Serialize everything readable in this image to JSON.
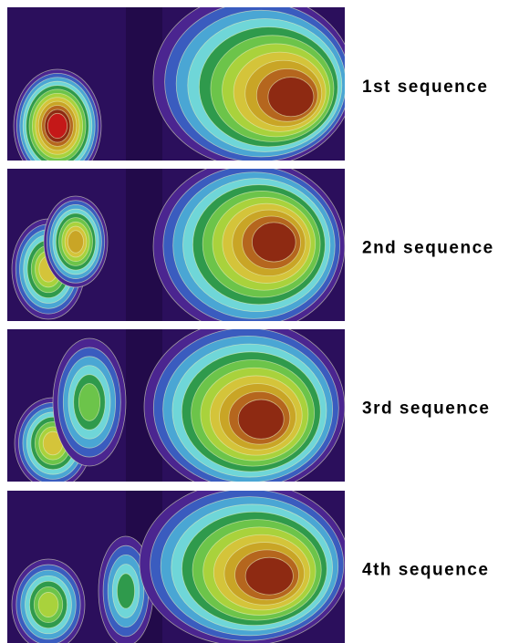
{
  "panels": [
    {
      "label": "1st sequence"
    },
    {
      "label": "2nd sequence"
    },
    {
      "label": "3rd sequence"
    },
    {
      "label": "4th sequence"
    }
  ]
}
